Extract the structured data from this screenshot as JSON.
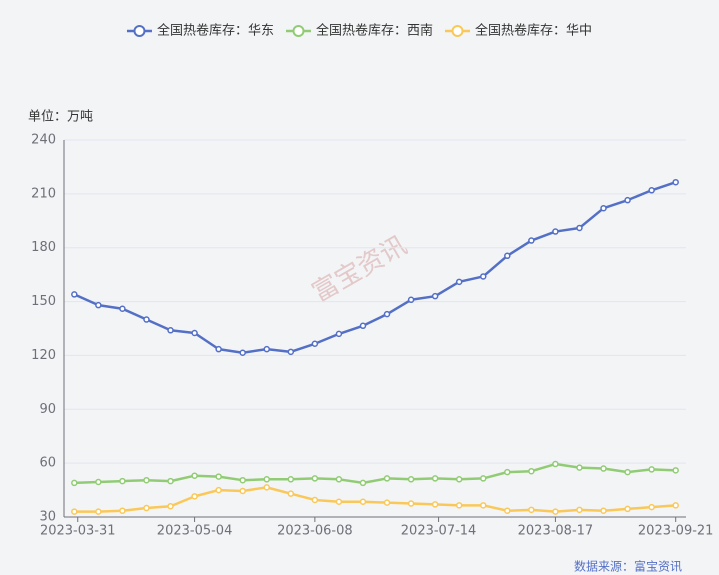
{
  "chart_data": {
    "type": "line",
    "unit_label": "单位：万吨",
    "watermark": "富宝资讯",
    "source": "数据来源：富宝资讯",
    "x": [
      "2023-03-30",
      "2023-04-06",
      "2023-04-13",
      "2023-04-20",
      "2023-04-27",
      "2023-05-04",
      "2023-05-11",
      "2023-05-18",
      "2023-05-25",
      "2023-06-01",
      "2023-06-08",
      "2023-06-15",
      "2023-06-22",
      "2023-06-29",
      "2023-07-06",
      "2023-07-13",
      "2023-07-20",
      "2023-07-27",
      "2023-08-03",
      "2023-08-10",
      "2023-08-17",
      "2023-08-24",
      "2023-08-31",
      "2023-09-07",
      "2023-09-14",
      "2023-09-21"
    ],
    "series": [
      {
        "name": "全国热卷库存：华东",
        "color": "#5470c6",
        "values": [
          154,
          148,
          146,
          140,
          134,
          132.5,
          123.5,
          121.5,
          123.5,
          122,
          126.5,
          132,
          136.5,
          143,
          151,
          153,
          161,
          164,
          175.5,
          184,
          189,
          191,
          202,
          206.5,
          212,
          216.5
        ]
      },
      {
        "name": "全国热卷库存：西南",
        "color": "#91cc75",
        "values": [
          49,
          49.5,
          50,
          50.5,
          50,
          53,
          52.5,
          50.5,
          51,
          51,
          51.5,
          51,
          49,
          51.5,
          51,
          51.5,
          51,
          51.5,
          55,
          55.5,
          59.5,
          57.5,
          57,
          55,
          56.5,
          56
        ]
      },
      {
        "name": "全国热卷库存：华中",
        "color": "#fac858",
        "values": [
          33,
          33,
          33.5,
          35,
          36,
          41.5,
          45,
          44.5,
          46.5,
          43,
          39.5,
          38.5,
          38.5,
          38,
          37.5,
          37,
          36.5,
          36.5,
          33.5,
          34,
          33,
          34,
          33.5,
          34.5,
          35.5,
          36.5
        ]
      }
    ],
    "xlim": [
      "2023-03-27",
      "2023-09-24"
    ],
    "xticks": [
      "2023-03-31",
      "2023-05-04",
      "2023-06-08",
      "2023-07-14",
      "2023-08-17",
      "2023-09-21"
    ],
    "ylim": [
      30,
      240
    ],
    "yticks": [
      30,
      60,
      90,
      120,
      150,
      180,
      210,
      240
    ],
    "grid": true
  }
}
